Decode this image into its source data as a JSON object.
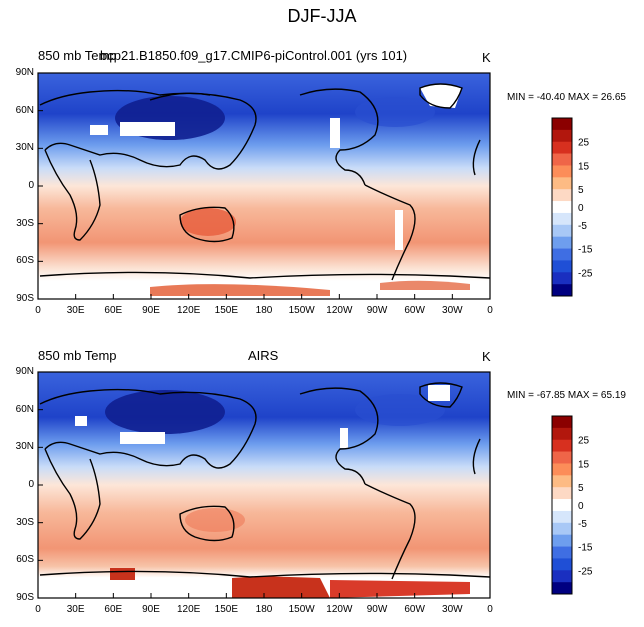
{
  "title": "DJF-JJA",
  "panels": [
    {
      "left_label": "850 mb Temp",
      "center_label": "bcp21.B1850.f09_g17.CMIP6-piControl.001 (yrs 101)",
      "units": "K",
      "minmax": "MIN = -40.40 MAX = 26.65"
    },
    {
      "left_label": "850 mb Temp",
      "center_label": "AIRS",
      "units": "K",
      "minmax": "MIN = -67.85 MAX = 65.19"
    }
  ],
  "lat_ticks": [
    "90N",
    "60N",
    "30N",
    "0",
    "30S",
    "60S",
    "90S"
  ],
  "lon_ticks": [
    "0",
    "30E",
    "60E",
    "90E",
    "120E",
    "150E",
    "180",
    "150W",
    "120W",
    "90W",
    "60W",
    "30W",
    "0"
  ],
  "colorbar": {
    "labels": [
      "25",
      "15",
      "5",
      "0",
      "-5",
      "-15",
      "-25"
    ],
    "colors": [
      "#8b0000",
      "#b2170d",
      "#d7301f",
      "#ef6548",
      "#fc8d59",
      "#fdbb84",
      "#fdd9c4",
      "#ffffff",
      "#d6e6fb",
      "#a8c8f6",
      "#6e9eee",
      "#3f6ee3",
      "#1f4fd6",
      "#1a2fc0",
      "#000080"
    ]
  }
}
